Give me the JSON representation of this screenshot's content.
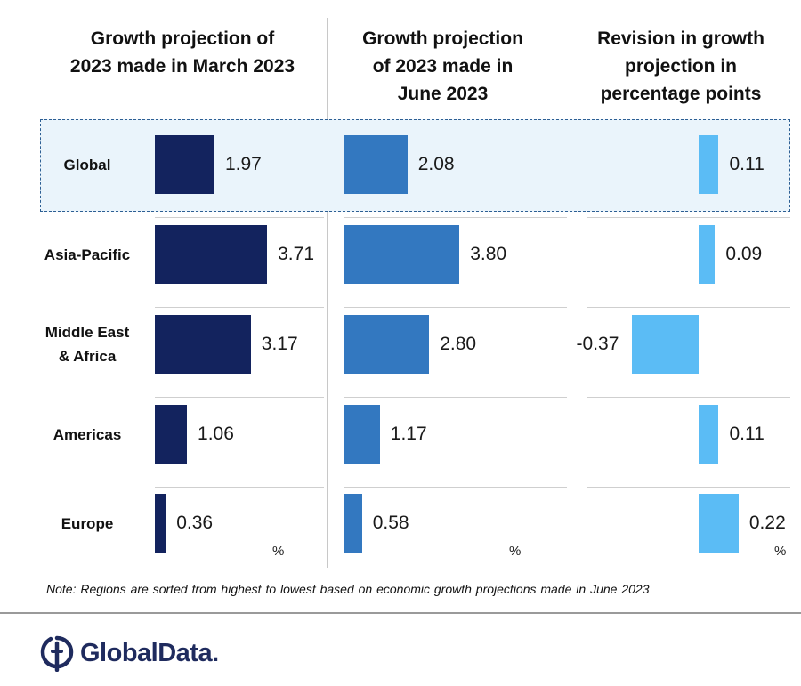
{
  "headers": {
    "march": [
      "Growth projection of",
      "2023 made in March 2023"
    ],
    "june": [
      "Growth projection",
      "of 2023 made in",
      "June 2023"
    ],
    "revision": [
      "Revision in growth",
      "projection in",
      "percentage points"
    ]
  },
  "unit_label": "%",
  "note": "Note: Regions are sorted from highest to lowest based on economic growth projections made in June 2023",
  "logo": {
    "text": "GlobalData.",
    "icon": "globaldata-logo-icon"
  },
  "colors": {
    "march": "#13235e",
    "june": "#3378c0",
    "revision": "#5bbcf5",
    "highlight": "#eaf4fb"
  },
  "chart_data": {
    "type": "bar",
    "orientation": "horizontal",
    "categories": [
      "Global",
      "Asia-Pacific",
      "Middle East & Africa",
      "Americas",
      "Europe"
    ],
    "category_lines": [
      [
        "Global"
      ],
      [
        "Asia-Pacific"
      ],
      [
        "Middle East",
        "& Africa"
      ],
      [
        "Americas"
      ],
      [
        "Europe"
      ]
    ],
    "highlighted_category": "Global",
    "series": [
      {
        "key": "march",
        "values": [
          1.97,
          3.71,
          3.17,
          1.06,
          0.36
        ],
        "labels": [
          "1.97",
          "3.71",
          "3.17",
          "1.06",
          "0.36"
        ]
      },
      {
        "key": "june",
        "values": [
          2.08,
          3.8,
          2.8,
          1.17,
          0.58
        ],
        "labels": [
          "2.08",
          "3.80",
          "2.80",
          "1.17",
          "0.58"
        ]
      },
      {
        "key": "revision",
        "values": [
          0.11,
          0.09,
          -0.37,
          0.11,
          0.22
        ],
        "labels": [
          "0.11",
          "0.09",
          "-0.37",
          "0.11",
          "0.22"
        ]
      }
    ]
  }
}
